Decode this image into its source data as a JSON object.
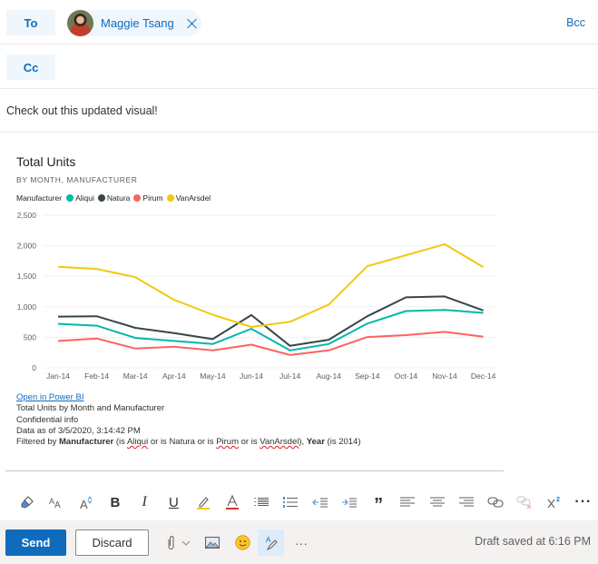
{
  "recipients": {
    "to_label": "To",
    "cc_label": "Cc",
    "bcc_label": "Bcc",
    "to": [
      {
        "name": "Maggie Tsang"
      }
    ]
  },
  "message": {
    "body_text": "Check out this updated visual!"
  },
  "chart_card": {
    "title": "Total Units",
    "subtitle": "BY MONTH, MANUFACTURER",
    "legend_title": "Manufacturer",
    "open_link": "Open in Power BI",
    "info": {
      "description": "Total Units by Month and Manufacturer",
      "sensitivity": "Confidential info",
      "data_as_of": "Data as of 3/5/2020, 3:14:42 PM",
      "filter_prefix": "Filtered by ",
      "filter_field1": "Manufacturer",
      "filter_text1a": " (is ",
      "filter_v1": "Aliqui",
      "filter_text1b": " or is Natura or is ",
      "filter_v2": "Pirum",
      "filter_text1c": " or is ",
      "filter_v3": "VanArsdel",
      "filter_text1d": "), ",
      "filter_field2": "Year",
      "filter_text2": " (is 2014)"
    }
  },
  "chart_data": {
    "type": "line",
    "title": "Total Units",
    "subtitle": "BY MONTH, MANUFACTURER",
    "xlabel": "",
    "ylabel": "",
    "ylim": [
      0,
      2500
    ],
    "yticks": [
      "0",
      "500",
      "1,000",
      "1,500",
      "2,000",
      "2,500"
    ],
    "grid": true,
    "legend_position": "top-left",
    "categories": [
      "Jan-14",
      "Feb-14",
      "Mar-14",
      "Apr-14",
      "May-14",
      "Jun-14",
      "Jul-14",
      "Aug-14",
      "Sep-14",
      "Oct-14",
      "Nov-14",
      "Dec-14"
    ],
    "series": [
      {
        "name": "Aliqui",
        "color": "#01b8aa",
        "values": [
          720,
          690,
          490,
          440,
          390,
          640,
          285,
          390,
          725,
          930,
          950,
          900
        ]
      },
      {
        "name": "Natura",
        "color": "#374649",
        "values": [
          840,
          845,
          655,
          570,
          470,
          865,
          360,
          460,
          845,
          1155,
          1170,
          940
        ]
      },
      {
        "name": "Pirum",
        "color": "#fd625e",
        "values": [
          440,
          480,
          315,
          345,
          285,
          380,
          210,
          285,
          505,
          535,
          590,
          510
        ]
      },
      {
        "name": "VanArsdel",
        "color": "#f2c80f",
        "values": [
          1655,
          1620,
          1485,
          1115,
          870,
          670,
          755,
          1035,
          1665,
          1845,
          2025,
          1650
        ]
      }
    ]
  },
  "format_toolbar": {
    "items": [
      {
        "name": "format-painter"
      },
      {
        "name": "font-size"
      },
      {
        "name": "grow-font"
      },
      {
        "name": "bold",
        "glyph": "B"
      },
      {
        "name": "italic",
        "glyph": "I"
      },
      {
        "name": "underline",
        "glyph": "U"
      },
      {
        "name": "highlight"
      },
      {
        "name": "font-color",
        "glyph": "A"
      },
      {
        "name": "bullets"
      },
      {
        "name": "numbering"
      },
      {
        "name": "decrease-indent"
      },
      {
        "name": "increase-indent"
      },
      {
        "name": "quote",
        "glyph": "”"
      },
      {
        "name": "align-left"
      },
      {
        "name": "align-center"
      },
      {
        "name": "align-right"
      },
      {
        "name": "insert-link"
      },
      {
        "name": "remove-link"
      },
      {
        "name": "superscript"
      },
      {
        "name": "more-formatting",
        "glyph": "···"
      }
    ]
  },
  "action_bar": {
    "send_label": "Send",
    "discard_label": "Discard",
    "more_glyph": "···",
    "draft_status": "Draft saved at 6:16 PM"
  },
  "colors": {
    "accent": "#0f6cbd",
    "pill_bg": "#eff6fc",
    "action_bar_bg": "#f3f2f1"
  }
}
